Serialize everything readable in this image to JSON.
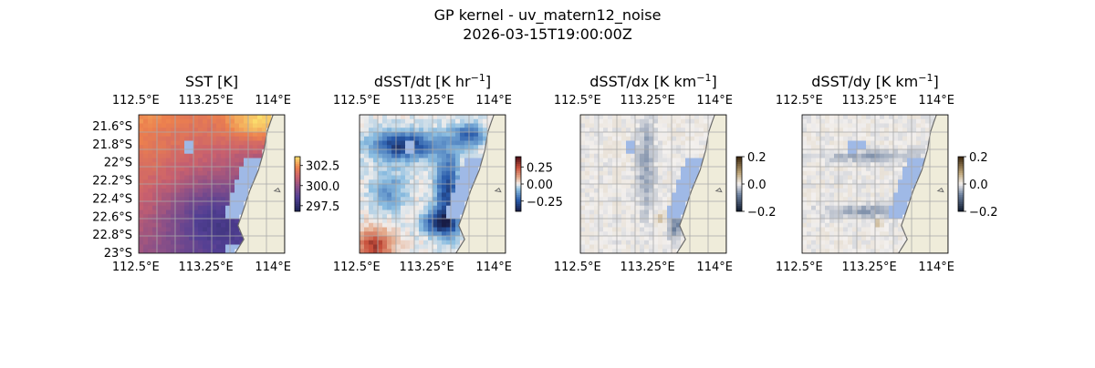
{
  "figure": {
    "title_line1": "GP kernel - uv_matern12_noise",
    "title_line2": "2026-03-15T19:00:00Z"
  },
  "colors": {
    "land": "#efecda",
    "coast": "#6b6b6b",
    "missing": "#9fb9e6",
    "grid": "#a9a9a9"
  },
  "chart_data": [
    {
      "type": "heatmap",
      "title": "SST [K]",
      "colormap": "thermal",
      "xticks": [
        "112.5°E",
        "113.25°E",
        "114°E"
      ],
      "yticks": [
        "21.6°S",
        "21.8°S",
        "22°S",
        "22.2°S",
        "22.4°S",
        "22.6°S",
        "22.8°S",
        "23°S"
      ],
      "x_range": [
        112.45,
        114.1
      ],
      "y_range": [
        -21.55,
        -23.05
      ],
      "show_left_ticks": true,
      "grid": true,
      "colorbar": {
        "ticks": [
          "302.5",
          "300.0",
          "297.5"
        ],
        "vmin": 296.8,
        "vmax": 303.6
      }
    },
    {
      "type": "heatmap",
      "title": "dSST/dt [K hr",
      "title_sup": "−1",
      "title_end": "]",
      "colormap": "balance",
      "xticks": [
        "112.5°E",
        "113.25°E",
        "114°E"
      ],
      "x_range": [
        112.45,
        114.1
      ],
      "y_range": [
        -21.55,
        -23.05
      ],
      "show_left_ticks": false,
      "grid": true,
      "colorbar": {
        "ticks": [
          "0.25",
          "0.00",
          "−0.25"
        ],
        "vmin": -0.4,
        "vmax": 0.4
      }
    },
    {
      "type": "heatmap",
      "title": "dSST/dx [K km",
      "title_sup": "−1",
      "title_end": "]",
      "colormap": "diff",
      "xticks": [
        "112.5°E",
        "113.25°E",
        "114°E"
      ],
      "x_range": [
        112.45,
        114.1
      ],
      "y_range": [
        -21.55,
        -23.05
      ],
      "show_left_ticks": false,
      "grid": true,
      "colorbar": {
        "ticks": [
          "0.2",
          "0.0",
          "−0.2"
        ],
        "vmin": -0.2,
        "vmax": 0.2
      }
    },
    {
      "type": "heatmap",
      "title": "dSST/dy [K km",
      "title_sup": "−1",
      "title_end": "]",
      "colormap": "diff",
      "xticks": [
        "112.5°E",
        "113.25°E",
        "114°E"
      ],
      "x_range": [
        112.45,
        114.1
      ],
      "y_range": [
        -21.55,
        -23.05
      ],
      "show_left_ticks": false,
      "grid": true,
      "colorbar": {
        "ticks": [
          "0.2",
          "0.0",
          "−0.2"
        ],
        "vmin": -0.2,
        "vmax": 0.2
      }
    }
  ]
}
